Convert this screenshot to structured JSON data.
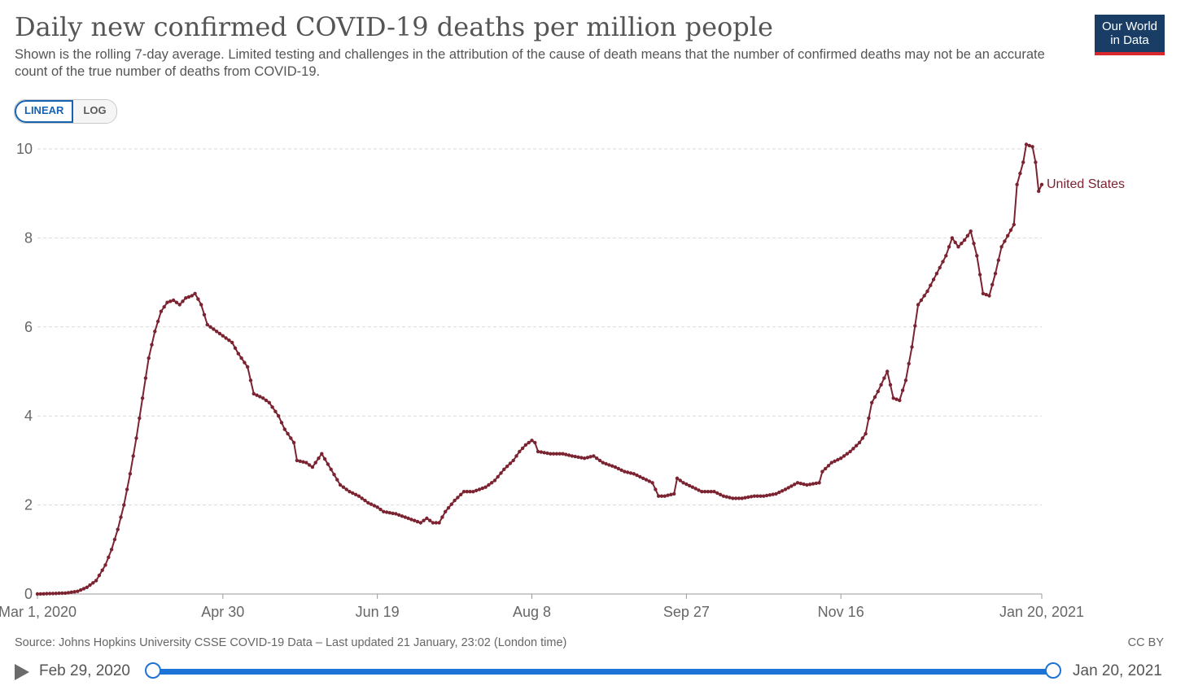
{
  "header": {
    "title": "Daily new confirmed COVID-19 deaths per million people",
    "subtitle": "Shown is the rolling 7-day average. Limited testing and challenges in the attribution of the cause of death means that the number of confirmed deaths may not be an accurate count of the true number of deaths from COVID-19.",
    "logo_line1": "Our World",
    "logo_line2": "in Data"
  },
  "controls": {
    "linear_label": "LINEAR",
    "log_label": "LOG",
    "active_scale": "linear"
  },
  "footer": {
    "source": "Source: Johns Hopkins University CSSE COVID-19 Data – Last updated 21 January, 23:02 (London time)",
    "license": "CC BY"
  },
  "timeline": {
    "start_label": "Feb 29, 2020",
    "end_label": "Jan 20, 2021"
  },
  "colors": {
    "series": "#7b2331",
    "grid": "#d9d9d9",
    "accent": "#1e74d6"
  },
  "chart_data": {
    "type": "line",
    "title": "Daily new confirmed COVID-19 deaths per million people",
    "xlabel": "",
    "ylabel": "",
    "ylim": [
      0,
      10
    ],
    "yticks": [
      "0",
      "2",
      "4",
      "6",
      "8",
      "10"
    ],
    "xticks": [
      {
        "label": "Mar 1, 2020",
        "x": "2020-03-01"
      },
      {
        "label": "Apr 30",
        "x": "2020-04-30"
      },
      {
        "label": "Jun 19",
        "x": "2020-06-19"
      },
      {
        "label": "Aug 8",
        "x": "2020-08-08"
      },
      {
        "label": "Sep 27",
        "x": "2020-09-27"
      },
      {
        "label": "Nov 16",
        "x": "2020-11-16"
      },
      {
        "label": "Jan 20, 2021",
        "x": "2021-01-20"
      }
    ],
    "xlim": [
      "2020-03-01",
      "2021-01-20"
    ],
    "grid": true,
    "series": [
      {
        "name": "United States",
        "points": [
          [
            "2020-03-01",
            0
          ],
          [
            "2020-03-10",
            0.02
          ],
          [
            "2020-03-14",
            0.06
          ],
          [
            "2020-03-17",
            0.15
          ],
          [
            "2020-03-20",
            0.3
          ],
          [
            "2020-03-23",
            0.65
          ],
          [
            "2020-03-25",
            1.0
          ],
          [
            "2020-03-27",
            1.45
          ],
          [
            "2020-03-29",
            2.0
          ],
          [
            "2020-03-31",
            2.7
          ],
          [
            "2020-04-02",
            3.5
          ],
          [
            "2020-04-04",
            4.4
          ],
          [
            "2020-04-06",
            5.3
          ],
          [
            "2020-04-08",
            5.9
          ],
          [
            "2020-04-10",
            6.35
          ],
          [
            "2020-04-12",
            6.55
          ],
          [
            "2020-04-14",
            6.6
          ],
          [
            "2020-04-16",
            6.5
          ],
          [
            "2020-04-18",
            6.65
          ],
          [
            "2020-04-20",
            6.7
          ],
          [
            "2020-04-21",
            6.75
          ],
          [
            "2020-04-23",
            6.5
          ],
          [
            "2020-04-25",
            6.05
          ],
          [
            "2020-04-27",
            5.95
          ],
          [
            "2020-04-30",
            5.8
          ],
          [
            "2020-05-03",
            5.65
          ],
          [
            "2020-05-05",
            5.4
          ],
          [
            "2020-05-08",
            5.1
          ],
          [
            "2020-05-10",
            4.5
          ],
          [
            "2020-05-13",
            4.4
          ],
          [
            "2020-05-15",
            4.3
          ],
          [
            "2020-05-18",
            4.0
          ],
          [
            "2020-05-20",
            3.7
          ],
          [
            "2020-05-23",
            3.4
          ],
          [
            "2020-05-24",
            3.0
          ],
          [
            "2020-05-27",
            2.95
          ],
          [
            "2020-05-29",
            2.85
          ],
          [
            "2020-06-01",
            3.15
          ],
          [
            "2020-06-04",
            2.8
          ],
          [
            "2020-06-07",
            2.45
          ],
          [
            "2020-06-10",
            2.3
          ],
          [
            "2020-06-13",
            2.2
          ],
          [
            "2020-06-16",
            2.05
          ],
          [
            "2020-06-19",
            1.95
          ],
          [
            "2020-06-21",
            1.85
          ],
          [
            "2020-06-25",
            1.8
          ],
          [
            "2020-06-29",
            1.7
          ],
          [
            "2020-07-03",
            1.6
          ],
          [
            "2020-07-05",
            1.7
          ],
          [
            "2020-07-07",
            1.6
          ],
          [
            "2020-07-09",
            1.6
          ],
          [
            "2020-07-11",
            1.85
          ],
          [
            "2020-07-14",
            2.1
          ],
          [
            "2020-07-17",
            2.3
          ],
          [
            "2020-07-20",
            2.3
          ],
          [
            "2020-07-24",
            2.4
          ],
          [
            "2020-07-27",
            2.55
          ],
          [
            "2020-07-30",
            2.8
          ],
          [
            "2020-08-02",
            3.0
          ],
          [
            "2020-08-04",
            3.2
          ],
          [
            "2020-08-06",
            3.35
          ],
          [
            "2020-08-08",
            3.45
          ],
          [
            "2020-08-09",
            3.4
          ],
          [
            "2020-08-10",
            3.2
          ],
          [
            "2020-08-14",
            3.15
          ],
          [
            "2020-08-18",
            3.15
          ],
          [
            "2020-08-21",
            3.1
          ],
          [
            "2020-08-25",
            3.05
          ],
          [
            "2020-08-28",
            3.1
          ],
          [
            "2020-08-31",
            2.95
          ],
          [
            "2020-09-04",
            2.85
          ],
          [
            "2020-09-07",
            2.75
          ],
          [
            "2020-09-10",
            2.7
          ],
          [
            "2020-09-13",
            2.6
          ],
          [
            "2020-09-16",
            2.5
          ],
          [
            "2020-09-18",
            2.2
          ],
          [
            "2020-09-20",
            2.2
          ],
          [
            "2020-09-23",
            2.25
          ],
          [
            "2020-09-24",
            2.6
          ],
          [
            "2020-09-26",
            2.5
          ],
          [
            "2020-09-29",
            2.4
          ],
          [
            "2020-10-02",
            2.3
          ],
          [
            "2020-10-06",
            2.3
          ],
          [
            "2020-10-09",
            2.2
          ],
          [
            "2020-10-12",
            2.15
          ],
          [
            "2020-10-15",
            2.15
          ],
          [
            "2020-10-19",
            2.2
          ],
          [
            "2020-10-22",
            2.2
          ],
          [
            "2020-10-26",
            2.25
          ],
          [
            "2020-10-29",
            2.35
          ],
          [
            "2020-11-02",
            2.5
          ],
          [
            "2020-11-05",
            2.45
          ],
          [
            "2020-11-09",
            2.5
          ],
          [
            "2020-11-10",
            2.75
          ],
          [
            "2020-11-13",
            2.95
          ],
          [
            "2020-11-16",
            3.05
          ],
          [
            "2020-11-19",
            3.2
          ],
          [
            "2020-11-22",
            3.4
          ],
          [
            "2020-11-24",
            3.6
          ],
          [
            "2020-11-26",
            4.3
          ],
          [
            "2020-11-28",
            4.55
          ],
          [
            "2020-12-01",
            5.0
          ],
          [
            "2020-12-03",
            4.4
          ],
          [
            "2020-12-05",
            4.35
          ],
          [
            "2020-12-07",
            4.8
          ],
          [
            "2020-12-09",
            5.55
          ],
          [
            "2020-12-11",
            6.5
          ],
          [
            "2020-12-14",
            6.8
          ],
          [
            "2020-12-17",
            7.2
          ],
          [
            "2020-12-20",
            7.6
          ],
          [
            "2020-12-22",
            8.0
          ],
          [
            "2020-12-24",
            7.8
          ],
          [
            "2020-12-26",
            7.95
          ],
          [
            "2020-12-28",
            8.15
          ],
          [
            "2020-12-30",
            7.6
          ],
          [
            "2021-01-01",
            6.75
          ],
          [
            "2021-01-03",
            6.7
          ],
          [
            "2021-01-05",
            7.2
          ],
          [
            "2021-01-07",
            7.8
          ],
          [
            "2021-01-09",
            8.05
          ],
          [
            "2021-01-11",
            8.3
          ],
          [
            "2021-01-12",
            9.2
          ],
          [
            "2021-01-14",
            9.7
          ],
          [
            "2021-01-15",
            10.1
          ],
          [
            "2021-01-17",
            10.05
          ],
          [
            "2021-01-18",
            9.7
          ],
          [
            "2021-01-19",
            9.05
          ],
          [
            "2021-01-20",
            9.2
          ]
        ]
      }
    ]
  }
}
